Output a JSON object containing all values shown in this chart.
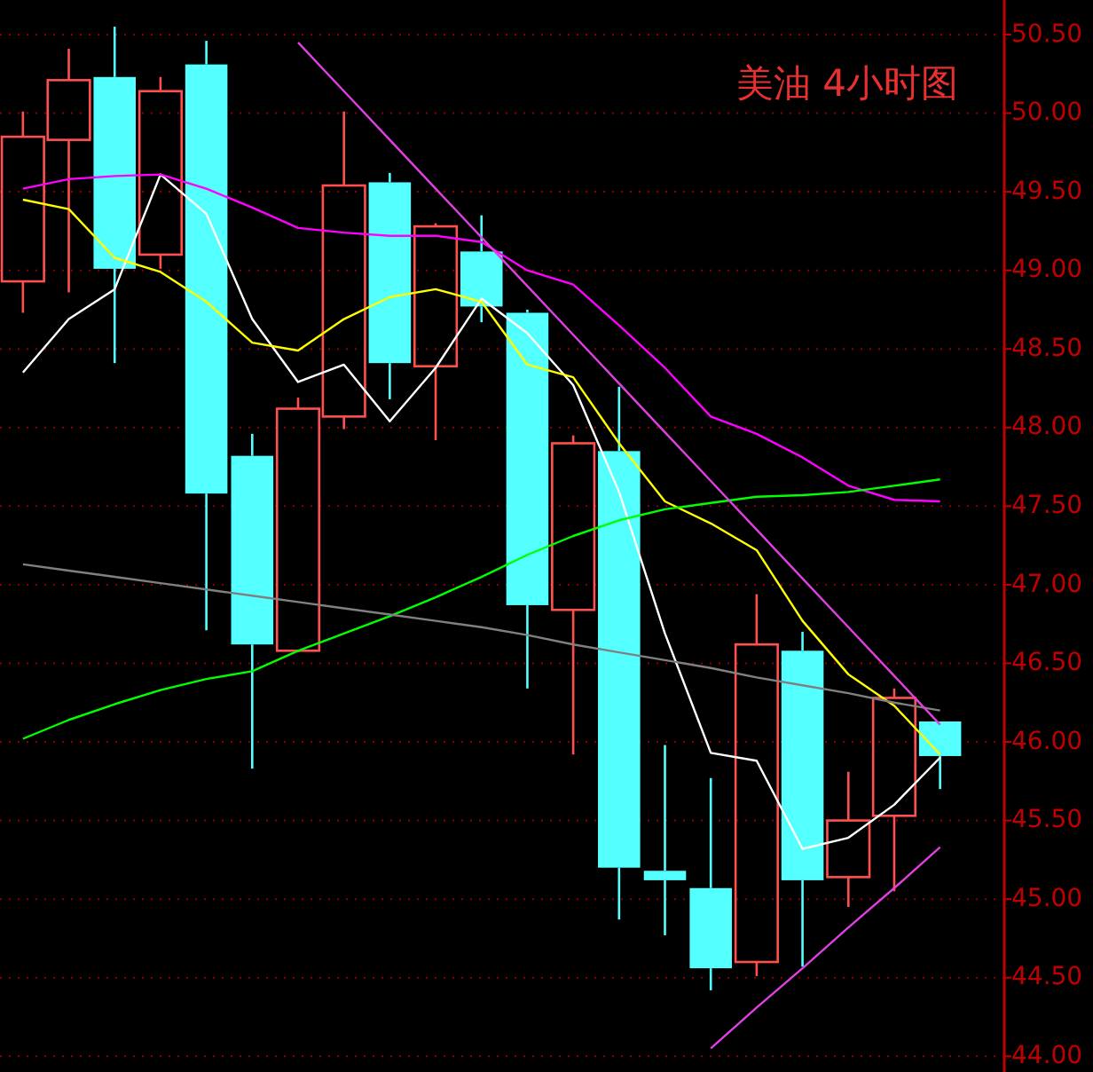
{
  "chart_data": {
    "type": "candlestick",
    "title": "美油 4小时图",
    "categories": [
      null,
      null,
      null,
      null,
      null,
      null,
      null,
      null,
      null,
      null,
      null,
      null,
      null,
      null,
      null,
      null,
      null,
      null,
      null,
      null,
      null
    ],
    "ohlc": [
      [
        48.93,
        50.01,
        48.73,
        49.85
      ],
      [
        49.83,
        50.41,
        48.86,
        50.21
      ],
      [
        50.23,
        50.55,
        48.41,
        49.01
      ],
      [
        49.1,
        50.23,
        49.01,
        50.14
      ],
      [
        50.31,
        50.46,
        46.71,
        47.58
      ],
      [
        47.82,
        47.96,
        45.83,
        46.62
      ],
      [
        46.58,
        48.19,
        46.57,
        48.12
      ],
      [
        48.07,
        50.01,
        47.99,
        49.54
      ],
      [
        49.56,
        49.62,
        48.18,
        48.41
      ],
      [
        48.39,
        49.3,
        47.92,
        49.28
      ],
      [
        49.12,
        49.35,
        48.67,
        48.77
      ],
      [
        48.73,
        48.75,
        46.34,
        46.87
      ],
      [
        46.84,
        47.95,
        45.92,
        47.9
      ],
      [
        47.85,
        48.26,
        44.87,
        45.2
      ],
      [
        45.18,
        45.98,
        44.77,
        45.12
      ],
      [
        45.07,
        45.77,
        44.42,
        44.56
      ],
      [
        44.6,
        46.94,
        44.51,
        46.62
      ],
      [
        46.58,
        46.7,
        44.57,
        45.12
      ],
      [
        45.14,
        45.81,
        44.95,
        45.5
      ],
      [
        45.53,
        46.34,
        45.05,
        46.28
      ],
      [
        46.13,
        46.13,
        45.7,
        45.91
      ]
    ],
    "colors": [
      "#ff5050",
      "#ff5050",
      "#54ffff",
      "#ff5050",
      "#54ffff",
      "#54ffff",
      "#ff5050",
      "#ff5050",
      "#54ffff",
      "#ff5050",
      "#54ffff",
      "#54ffff",
      "#ff5050",
      "#54ffff",
      "#54ffff",
      "#54ffff",
      "#ff5050",
      "#54ffff",
      "#ff5050",
      "#ff5050",
      "#54ffff"
    ],
    "series": [
      {
        "type": "line",
        "color": "#ffffff",
        "values": [
          48.35,
          48.69,
          48.88,
          49.61,
          49.36,
          48.69,
          48.29,
          48.4,
          48.04,
          48.38,
          48.82,
          48.6,
          48.27,
          47.59,
          46.69,
          45.93,
          45.88,
          45.32,
          45.39,
          45.6,
          45.9
        ]
      },
      {
        "type": "line",
        "color": "#ffff00",
        "values": [
          49.45,
          49.39,
          49.08,
          48.99,
          48.8,
          48.54,
          48.49,
          48.69,
          48.83,
          48.88,
          48.8,
          48.4,
          48.32,
          47.9,
          47.53,
          47.39,
          47.22,
          46.77,
          46.43,
          46.23,
          45.92
        ]
      },
      {
        "type": "line",
        "color": "#ff00ff",
        "values": [
          49.52,
          49.58,
          49.6,
          49.61,
          49.52,
          49.4,
          49.27,
          49.24,
          49.22,
          49.22,
          49.18,
          49.0,
          48.91,
          48.65,
          48.38,
          48.07,
          47.96,
          47.81,
          47.63,
          47.54,
          47.53
        ]
      },
      {
        "type": "line",
        "color": "#00ff00",
        "values": [
          46.02,
          46.14,
          46.24,
          46.33,
          46.4,
          46.45,
          46.58,
          46.69,
          46.8,
          46.92,
          47.05,
          47.19,
          47.31,
          47.41,
          47.48,
          47.52,
          47.56,
          47.57,
          47.59,
          47.63,
          47.67
        ]
      },
      {
        "type": "line",
        "color": "#808080",
        "values": [
          47.13,
          47.09,
          47.05,
          47.01,
          46.97,
          46.93,
          46.89,
          46.85,
          46.81,
          46.77,
          46.73,
          46.68,
          46.62,
          46.57,
          46.52,
          46.47,
          46.41,
          46.36,
          46.31,
          46.25,
          46.2
        ]
      },
      {
        "type": "line",
        "color": "#e040e0",
        "values": [
          null,
          null,
          null,
          null,
          null,
          null,
          50.45,
          50.14,
          49.83,
          49.52,
          49.21,
          48.9,
          48.59,
          48.28,
          47.97,
          47.66,
          47.35,
          47.04,
          46.73,
          46.42,
          46.11
        ]
      },
      {
        "type": "line",
        "color": "#e040e0",
        "values": [
          null,
          null,
          null,
          null,
          null,
          null,
          null,
          null,
          null,
          null,
          null,
          null,
          null,
          null,
          null,
          44.05,
          44.31,
          44.56,
          44.82,
          45.07,
          45.33
        ]
      }
    ],
    "ylim": [
      43.9,
      50.72
    ],
    "yticks": [
      {
        "value": 44,
        "label": "44.00"
      },
      {
        "value": 44.5,
        "label": "44.50"
      },
      {
        "value": 45,
        "label": "45.00"
      },
      {
        "value": 45.5,
        "label": "45.50"
      },
      {
        "value": 46,
        "label": "46.00"
      },
      {
        "value": 46.5,
        "label": "46.50"
      },
      {
        "value": 47,
        "label": "47.00"
      },
      {
        "value": 47.5,
        "label": "47.50"
      },
      {
        "value": 48,
        "label": "48.00"
      },
      {
        "value": 48.5,
        "label": "48.50"
      },
      {
        "value": 49,
        "label": "49.00"
      },
      {
        "value": 49.5,
        "label": "49.50"
      },
      {
        "value": 50,
        "label": "50.00"
      },
      {
        "value": 50.5,
        "label": "50.50"
      }
    ],
    "grid": "y",
    "tick_labels": "y"
  }
}
